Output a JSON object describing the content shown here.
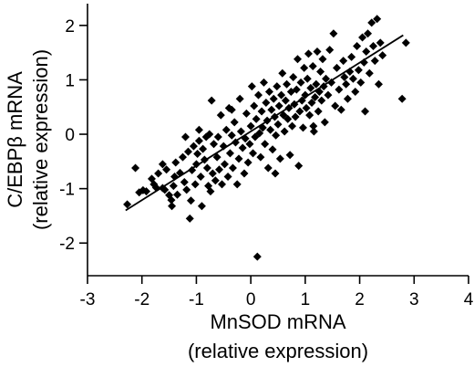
{
  "chart_data": {
    "type": "scatter",
    "xlabel": [
      "MnSOD mRNA",
      "(relative expression)"
    ],
    "ylabel": [
      "C/EBPβ mRNA",
      "(relative expression)"
    ],
    "xlim": [
      -3,
      4
    ],
    "ylim": [
      -2.6,
      2.4
    ],
    "xticks": [
      "-3",
      "-2",
      "-1",
      "0",
      "1",
      "2",
      "3",
      "4"
    ],
    "yticks": [
      "-2",
      "-1",
      "0",
      "1",
      "2"
    ],
    "marker": "diamond",
    "grid": false,
    "fit_line": {
      "x": [
        -2.3,
        2.8
      ],
      "y": [
        -1.4,
        1.82
      ]
    },
    "points": [
      [
        -2.27,
        -1.29
      ],
      [
        -2.12,
        -0.62
      ],
      [
        -2.05,
        -1.07
      ],
      [
        -1.98,
        -1.03
      ],
      [
        -1.92,
        -1.05
      ],
      [
        -1.82,
        -0.82
      ],
      [
        -1.78,
        -0.92
      ],
      [
        -1.74,
        -0.98
      ],
      [
        -1.7,
        -0.72
      ],
      [
        -1.62,
        -0.99
      ],
      [
        -1.58,
        -1.02
      ],
      [
        -1.55,
        -0.65
      ],
      [
        -1.5,
        -1.12
      ],
      [
        -1.46,
        -1.21
      ],
      [
        -1.45,
        -1.32
      ],
      [
        -1.42,
        -0.95
      ],
      [
        -1.4,
        -0.78
      ],
      [
        -1.38,
        -0.52
      ],
      [
        -1.35,
        -1.11
      ],
      [
        -1.3,
        -0.71
      ],
      [
        -1.25,
        -0.42
      ],
      [
        -1.22,
        -0.88
      ],
      [
        -1.2,
        -0.05
      ],
      [
        -1.18,
        -1.02
      ],
      [
        -1.15,
        -0.32
      ],
      [
        -1.12,
        -1.55
      ],
      [
        -1.1,
        -1.22
      ],
      [
        -1.08,
        -0.66
      ],
      [
        -1.05,
        -0.22
      ],
      [
        -1.02,
        -0.92
      ],
      [
        -1.0,
        -0.55
      ],
      [
        -0.98,
        -0.36
      ],
      [
        -0.95,
        -0.12
      ],
      [
        -0.92,
        -0.78
      ],
      [
        -0.9,
        -1.32
      ],
      [
        -0.88,
        -0.27
      ],
      [
        -0.85,
        -0.47
      ],
      [
        -0.82,
        -0.05
      ],
      [
        -0.8,
        -0.62
      ],
      [
        -0.78,
        -0.95
      ],
      [
        -0.76,
        0.0
      ],
      [
        -0.74,
        -1.05
      ],
      [
        -0.7,
        -0.72
      ],
      [
        -0.68,
        -0.18
      ],
      [
        -0.65,
        -0.85
      ],
      [
        -0.62,
        -0.42
      ],
      [
        -0.6,
        -0.05
      ],
      [
        -0.58,
        -0.65
      ],
      [
        -0.55,
        0.35
      ],
      [
        -0.53,
        -0.92
      ],
      [
        -0.5,
        -0.22
      ],
      [
        -0.48,
        -0.55
      ],
      [
        -0.45,
        0.08
      ],
      [
        -0.42,
        -0.78
      ],
      [
        -0.4,
        0.48
      ],
      [
        -0.38,
        -0.35
      ],
      [
        -0.35,
        -0.02
      ],
      [
        -0.33,
        -0.62
      ],
      [
        -0.3,
        0.22
      ],
      [
        -0.28,
        -0.15
      ],
      [
        -0.25,
        -0.92
      ],
      [
        -0.22,
        -0.45
      ],
      [
        -0.2,
        0.65
      ],
      [
        -0.18,
        0.05
      ],
      [
        -0.15,
        -0.25
      ],
      [
        -0.12,
        -0.72
      ],
      [
        -0.1,
        -0.08
      ],
      [
        -0.08,
        0.38
      ],
      [
        -0.05,
        -0.52
      ],
      [
        -0.02,
        -0.18
      ],
      [
        0.0,
        0.15
      ],
      [
        0.02,
        0.88
      ],
      [
        0.04,
        -0.35
      ],
      [
        0.06,
        0.52
      ],
      [
        0.08,
        -0.05
      ],
      [
        0.1,
        0.28
      ],
      [
        0.12,
        -2.25
      ],
      [
        0.14,
        0.72
      ],
      [
        0.16,
        0.02
      ],
      [
        0.18,
        -0.42
      ],
      [
        0.2,
        0.42
      ],
      [
        0.22,
        0.12
      ],
      [
        0.24,
        0.95
      ],
      [
        0.26,
        -0.18
      ],
      [
        0.28,
        0.58
      ],
      [
        0.3,
        0.25
      ],
      [
        0.32,
        -0.62
      ],
      [
        0.34,
        0.78
      ],
      [
        0.36,
        0.08
      ],
      [
        0.38,
        0.45
      ],
      [
        0.4,
        -0.28
      ],
      [
        0.42,
        0.65
      ],
      [
        0.44,
        0.32
      ],
      [
        0.46,
        -0.02
      ],
      [
        0.48,
        0.88
      ],
      [
        0.5,
        0.18
      ],
      [
        0.52,
        0.52
      ],
      [
        0.54,
        -0.45
      ],
      [
        0.56,
        0.72
      ],
      [
        0.58,
        1.12
      ],
      [
        0.6,
        0.35
      ],
      [
        0.62,
        0.05
      ],
      [
        0.64,
        0.62
      ],
      [
        0.66,
        0.92
      ],
      [
        0.68,
        0.28
      ],
      [
        0.7,
        0.48
      ],
      [
        0.72,
        -0.38
      ],
      [
        0.74,
        0.78
      ],
      [
        0.76,
        0.15
      ],
      [
        0.78,
        1.05
      ],
      [
        0.8,
        0.55
      ],
      [
        0.82,
        0.32
      ],
      [
        0.84,
        0.82
      ],
      [
        0.86,
        1.38
      ],
      [
        0.88,
        -0.58
      ],
      [
        0.9,
        0.42
      ],
      [
        0.92,
        0.95
      ],
      [
        0.94,
        0.62
      ],
      [
        0.96,
        0.12
      ],
      [
        0.98,
        1.22
      ],
      [
        1.0,
        0.72
      ],
      [
        1.02,
        0.48
      ],
      [
        1.04,
        1.02
      ],
      [
        1.06,
        1.48
      ],
      [
        1.08,
        0.35
      ],
      [
        1.1,
        0.85
      ],
      [
        1.12,
        0.58
      ],
      [
        1.14,
        1.25
      ],
      [
        1.16,
        0.05
      ],
      [
        1.18,
        0.68
      ],
      [
        1.2,
        0.92
      ],
      [
        1.22,
        1.52
      ],
      [
        1.24,
        0.42
      ],
      [
        1.26,
        0.78
      ],
      [
        1.28,
        1.15
      ],
      [
        1.3,
        0.62
      ],
      [
        1.32,
        1.38
      ],
      [
        1.34,
        0.88
      ],
      [
        1.36,
        0.22
      ],
      [
        1.38,
        1.02
      ],
      [
        1.42,
        0.72
      ],
      [
        1.45,
        1.55
      ],
      [
        1.48,
        0.95
      ],
      [
        1.52,
        1.85
      ],
      [
        1.55,
        0.52
      ],
      [
        1.58,
        1.22
      ],
      [
        1.62,
        0.82
      ],
      [
        1.66,
        0.45
      ],
      [
        1.7,
        1.35
      ],
      [
        1.72,
        1.05
      ],
      [
        1.75,
        0.92
      ],
      [
        1.78,
        0.65
      ],
      [
        1.82,
        1.15
      ],
      [
        1.85,
        1.42
      ],
      [
        1.88,
        1.02
      ],
      [
        1.92,
        0.78
      ],
      [
        1.95,
        1.62
      ],
      [
        1.98,
        1.18
      ],
      [
        2.02,
        0.95
      ],
      [
        2.05,
        1.78
      ],
      [
        2.08,
        1.32
      ],
      [
        2.1,
        0.42
      ],
      [
        2.12,
        1.52
      ],
      [
        2.15,
        1.85
      ],
      [
        2.18,
        1.12
      ],
      [
        2.22,
        2.05
      ],
      [
        2.25,
        1.62
      ],
      [
        2.28,
        1.35
      ],
      [
        2.32,
        2.12
      ],
      [
        2.35,
        0.92
      ],
      [
        2.38,
        1.68
      ],
      [
        2.42,
        1.45
      ],
      [
        2.78,
        0.65
      ],
      [
        2.85,
        1.68
      ],
      [
        -0.72,
        0.62
      ],
      [
        -1.62,
        -0.55
      ],
      [
        -0.95,
        0.08
      ],
      [
        0.45,
        -0.72
      ],
      [
        1.15,
        0.15
      ],
      [
        -0.35,
        0.45
      ]
    ]
  }
}
